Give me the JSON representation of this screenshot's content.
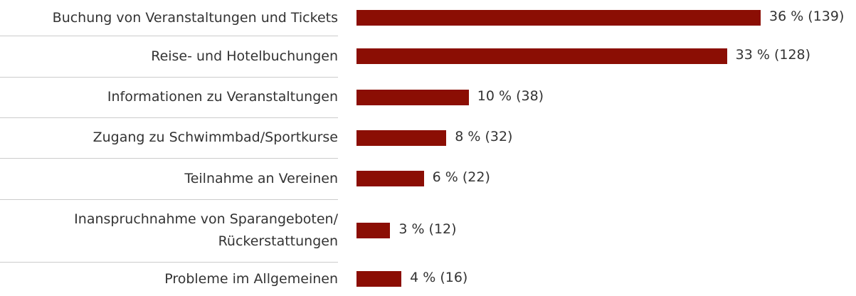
{
  "chart_data": {
    "type": "bar",
    "orientation": "horizontal",
    "color": "#8b0e04",
    "categories": [
      "Buchung von Veranstaltungen und Tickets",
      "Reise- und Hotelbuchungen",
      "Informationen zu Veranstaltungen",
      "Zugang zu Schwimmbad/Sportkurse",
      "Teilnahme an Vereinen",
      "Inanspruchnahme von Sparangeboten/\nRückerstattungen",
      "Probleme im Allgemeinen"
    ],
    "values": [
      36,
      33,
      10,
      8,
      6,
      3,
      4
    ],
    "value_labels": [
      "36 % (139)",
      "33 % (128)",
      "10 % (38)",
      "8 % (32)",
      "6 % (22)",
      "3 % (12)",
      "4 % (16)"
    ]
  }
}
